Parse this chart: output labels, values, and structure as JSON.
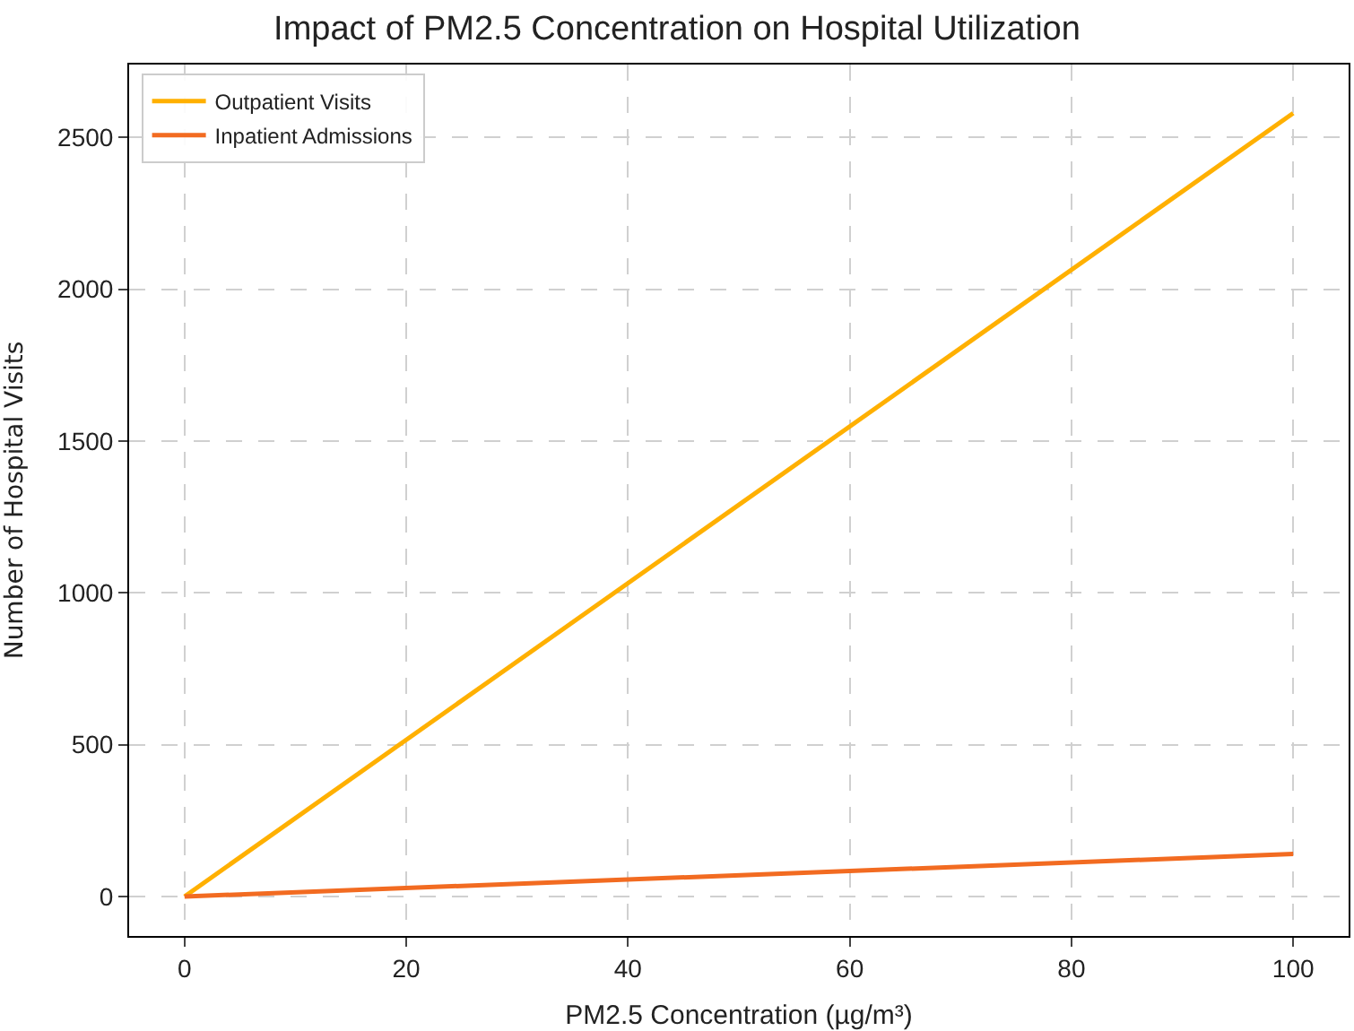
{
  "chart_data": {
    "type": "line",
    "title": "Impact of PM2.5 Concentration on Hospital Utilization",
    "xlabel": "PM2.5 Concentration (µg/m³)",
    "ylabel": "Number of Hospital Visits",
    "x": [
      0,
      100
    ],
    "series": [
      {
        "name": "Outpatient Visits",
        "color": "#ffb000",
        "values": [
          0,
          2580
        ]
      },
      {
        "name": "Inpatient Admissions",
        "color": "#f26b21",
        "values": [
          0,
          140
        ]
      }
    ],
    "xlim": [
      -5,
      105
    ],
    "xticks": [
      0,
      20,
      40,
      60,
      80,
      100
    ],
    "ylim": [
      -130,
      2740
    ],
    "yticks": [
      0,
      500,
      1000,
      1500,
      2000,
      2500
    ],
    "grid": true,
    "legend": "top left",
    "line_style": "solid",
    "marker": "none"
  }
}
